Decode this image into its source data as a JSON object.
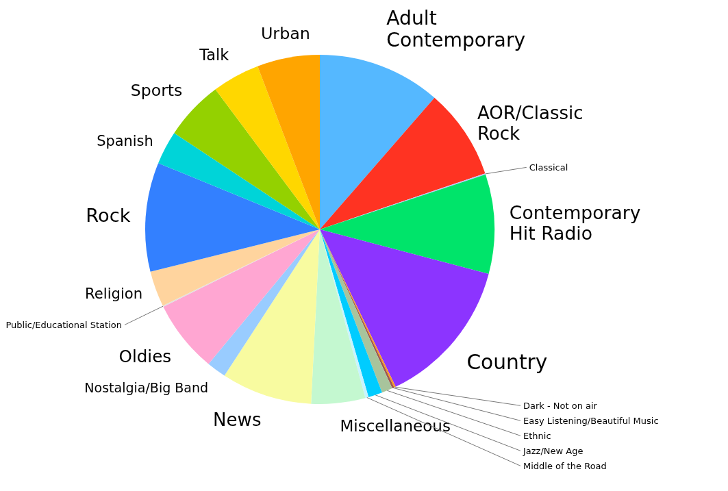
{
  "chart_data": {
    "type": "pie",
    "categories": [
      "Adult Contemporary",
      "AOR/Classic Rock",
      "Classical",
      "Contemporary Hit Radio",
      "Country",
      "Dark - Not on air",
      "Easy Listening/Beautiful Music",
      "Ethnic",
      "Jazz/New Age",
      "Middle of the Road",
      "Miscellaneous",
      "News",
      "Nostalgia/Big Band",
      "Oldies",
      "Public/Educational Station",
      "Religion",
      "Rock",
      "Spanish",
      "Sports",
      "Talk",
      "Urban"
    ],
    "values": [
      11.4,
      8.4,
      0.1,
      9.2,
      13.75,
      0.15,
      0.2,
      1.0,
      1.3,
      0.3,
      5.0,
      8.4,
      1.8,
      6.7,
      0.1,
      3.3,
      10.1,
      3.1,
      5.5,
      4.4,
      5.8
    ],
    "colors": [
      "#55b8ff",
      "#ff3322",
      "#c0c0ff",
      "#00e46a",
      "#8c34ff",
      "#ff9b1e",
      "#a0584f",
      "#a8c49c",
      "#00ccff",
      "#c8f4ff",
      "#c4f8d0",
      "#f8fba0",
      "#99ccff",
      "#ffa6d2",
      "#e0e0e0",
      "#ffd49e",
      "#3380ff",
      "#00d4d8",
      "#94d100",
      "#ffd700",
      "#ffa500"
    ]
  }
}
